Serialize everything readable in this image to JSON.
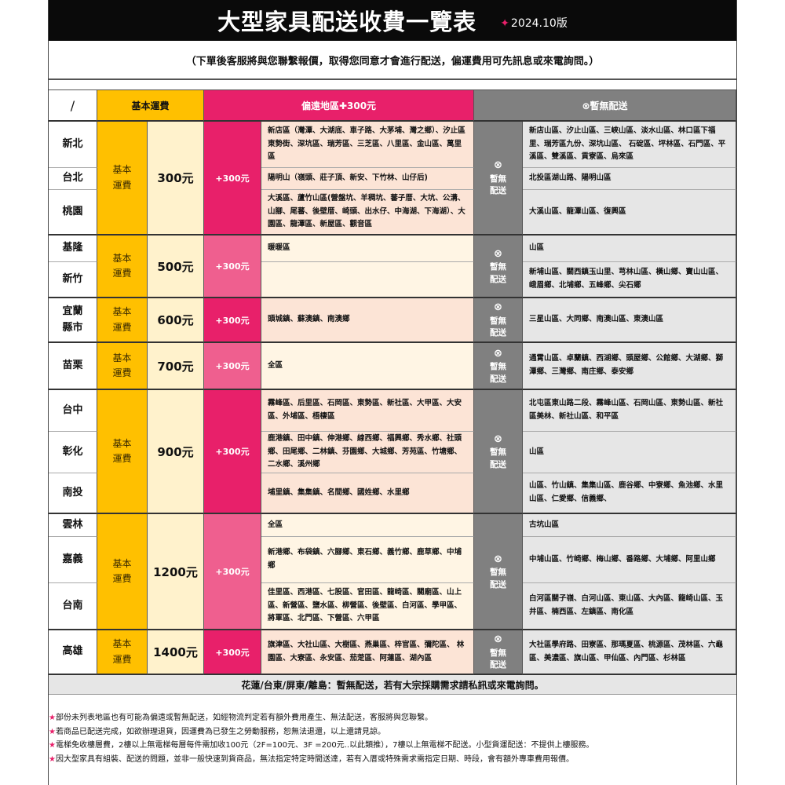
{
  "header": {
    "title": "大型家具配送收費一覽表",
    "version_star": "✦",
    "version": "2024.10版",
    "subtitle": "（下單後客服將與您聯繫報價，取得您同意才會進行配送，偏運費用可先訊息或來電詢問。）"
  },
  "columns": {
    "slash": "/",
    "basic": "基本運費",
    "remote": "偏遠地區✚300元",
    "none": "⊗暫無配送"
  },
  "colors": {
    "basic": "#ffc000",
    "price_bg": "#fff2cc",
    "surcharge_dark": "#e8206a",
    "surcharge_light": "#ef5f8f",
    "remote_peach": "#fce4d6",
    "remote_cream": "#fff5e4",
    "no_delivery": "#808080",
    "no_delivery_list": "#e6e6e6"
  },
  "groups": [
    {
      "basic_label": "基本\n運費",
      "price": "300元",
      "surcharge": "+300元",
      "surcharge_color": "#e8206a",
      "remote_bg": "#fce4d6",
      "no_delivery": [
        "⊗",
        "暫無",
        "配送"
      ],
      "rows": [
        {
          "region": "新北",
          "remote": "新店區（灣潭、大湖底、車子路、大茅埔、灣之鄉）、汐止區東勢街、深坑區、瑞芳區、三芝區、八里區、金山區、萬里區",
          "none": "新店山區、汐止山區、三峽山區、淡水山區、林口區下福里、瑞芳區九份、深坑山區、 石碇區、坪林區、石門區、平溪區、雙溪區、貢寮區、烏來區"
        },
        {
          "region": "台北",
          "remote": "陽明山（嶺頭、莊子頂、新安、下竹林、山仔后)",
          "none": "北投區湖山路、陽明山區"
        },
        {
          "region": "桃園",
          "remote": "大溪區、蘆竹山區(營盤坑、羊稠坑、蕃子厝、大坑、公溝、山腳、尾蕃、後壁厝、崎頭、出水仔、中海湖、下海湖）、大園區、龍潭區、新屋區、觀音區",
          "none": "大溪山區、龍潭山區、復興區"
        }
      ]
    },
    {
      "basic_label": "基本\n運費",
      "price": "500元",
      "surcharge": "+300元",
      "surcharge_color": "#ef5f8f",
      "remote_bg": "#fff5e4",
      "no_delivery": [
        "⊗",
        "暫無",
        "配送"
      ],
      "rows": [
        {
          "region": "基隆",
          "remote": "暖暖區",
          "none": "山區"
        },
        {
          "region": "新竹",
          "remote": "",
          "none": "新埔山區、關西鎮玉山里、芎林山區、橫山鄉、寶山山區、峨眉鄉、北埔鄉、五峰鄉、尖石鄉"
        }
      ]
    },
    {
      "basic_label": "基本\n運費",
      "price": "600元",
      "surcharge": "+300元",
      "surcharge_color": "#e8206a",
      "remote_bg": "#fce4d6",
      "no_delivery": [
        "⊗",
        "暫無",
        "配送"
      ],
      "rows": [
        {
          "region": "宜蘭\n縣市",
          "remote": "頭城鎮、蘇澳鎮、南澳鄉",
          "none": "三星山區、大同鄉、南澳山區、東澳山區"
        }
      ]
    },
    {
      "basic_label": "基本\n運費",
      "price": "700元",
      "surcharge": "+300元",
      "surcharge_color": "#ef5f8f",
      "remote_bg": "#fff5e4",
      "no_delivery": [
        "⊗",
        "暫無",
        "配送"
      ],
      "rows": [
        {
          "region": "苗栗",
          "remote": "全區",
          "none": "通霄山區、卓蘭鎮、西湖鄉、頭屋鄉、公館鄉、大湖鄉、獅潭鄉、三灣鄉、南庄鄉、泰安鄉"
        }
      ]
    },
    {
      "basic_label": "基本\n運費",
      "price": "900元",
      "surcharge": "+300元",
      "surcharge_color": "#e8206a",
      "remote_bg": "#fce4d6",
      "no_delivery": [
        "⊗",
        "暫無",
        "配送"
      ],
      "rows": [
        {
          "region": "台中",
          "remote": "霧峰區、后里區、石岡區、東勢區、新社區、大甲區、大安區、外埔區、梧棲區",
          "none": "北屯區東山路二段、霧峰山區、石岡山區、東勢山區、新社區美林、新社山區、和平區"
        },
        {
          "region": "彰化",
          "remote": "鹿港鎮、田中鎮、伸港鄉、線西鄉、福興鄉、秀水鄉、社頭鄉、田尾鄉、二林鎮、芬園鄉、大城鄉、芳苑區、竹塘鄉、二水鄉、溪州鄉",
          "none": "山區"
        },
        {
          "region": "南投",
          "remote": "埔里鎮、集集鎮、名間鄉、國姓鄉、水里鄉",
          "none": "山區、竹山鎮、集集山區、鹿谷鄉、中寮鄉、魚池鄉、水里山區、仁愛鄉、信義鄉、"
        }
      ]
    },
    {
      "basic_label": "基本\n運費",
      "price": "1200元",
      "surcharge": "+300元",
      "surcharge_color": "#ef5f8f",
      "remote_bg": "#fff5e4",
      "no_delivery": [
        "⊗",
        "暫無",
        "配送"
      ],
      "rows": [
        {
          "region": "雲林",
          "remote": "全區",
          "none": "古坑山區"
        },
        {
          "region": "嘉義",
          "remote": "新港鄉、布袋鎮、六腳鄉、東石鄉、義竹鄉、鹿草鄉、中埔鄉",
          "none": "中埔山區、竹崎鄉、梅山鄉、番路鄉、大埔鄉、阿里山鄉"
        },
        {
          "region": "台南",
          "remote": "佳里區、西港區、七股區、官田區、龍崎區、關廟區、山上區、新營區、鹽水區、柳營區、後壁區、白河區、學甲區、將軍區、北門區、下營區、六甲區",
          "none": "白河區關子嶺、白河山區、東山區、大內區、龍崎山區、玉井區、楠西區、左鎮區、南化區"
        }
      ]
    },
    {
      "basic_label": "基本\n運費",
      "price": "1400元",
      "surcharge": "+300元",
      "surcharge_color": "#e8206a",
      "remote_bg": "#fce4d6",
      "no_delivery": [
        "⊗",
        "暫無",
        "配送"
      ],
      "rows": [
        {
          "region": "高雄",
          "remote": "旗津區、大社山區、大樹區、燕巢區、梓官區、彌陀區、 林園區、大寮區、永安區、茄萣區、阿蓮區、湖內區",
          "none": "大社區學府路、田寮區、那瑪夏區、桃源區、茂林區、六龜區、美濃區、旗山區、甲仙區、內門區、杉林區"
        }
      ]
    }
  ],
  "islands": "花蓮/台東/屏東/離島：暫無配送，若有大宗採購需求請私訊或來電詢問。",
  "notes": [
    {
      "star": "★",
      "text": "部份未列表地區也有可能為偏遠或暫無配送，如經物流判定若有額外費用產生、無法配送，客服將與您聯繫。"
    },
    {
      "star": "★",
      "text": "若商品已配送完成，如欲辦理退貨，因運費為已發生之勞動服務，恕無法退還，以上還請見諒。"
    },
    {
      "star": "★",
      "text": "電梯免收樓層費，2樓以上無電梯每層每件需加收100元（2F=100元、3F =200元..以此類推），7樓以上無電梯不配送。小型貨運配送：不提供上樓服務。"
    },
    {
      "star": "★",
      "text": "因大型家具有組裝、配送的問題，並非一般快速到貨商品，無法指定特定時間送達，若有入厝或特殊需求需指定日期、時段，會有額外專車費用報價。"
    }
  ]
}
